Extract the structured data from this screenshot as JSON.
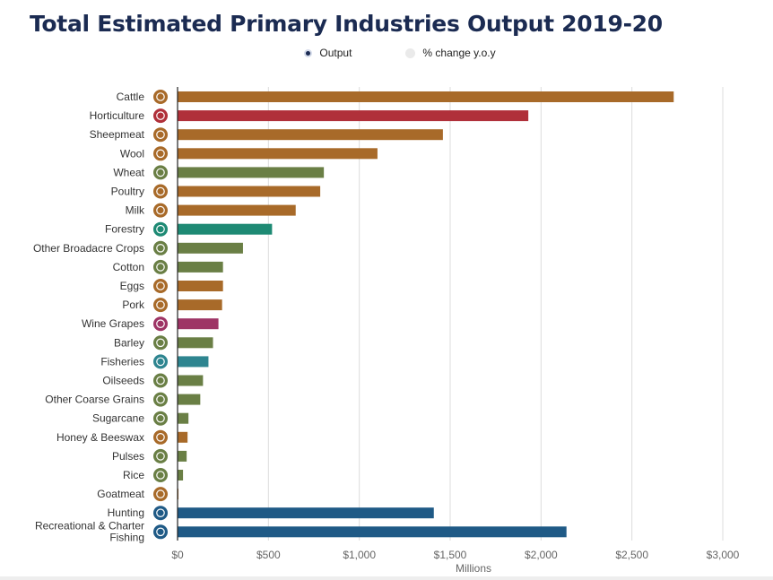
{
  "title": "Total Estimated Primary Industries Output 2019-20",
  "legend": {
    "items": [
      {
        "label": "Output",
        "active": true
      },
      {
        "label": "% change y.o.y",
        "active": false
      }
    ]
  },
  "chart_data": {
    "type": "bar",
    "orientation": "horizontal",
    "title": "Total Estimated Primary Industries Output 2019-20",
    "xlabel": "Millions",
    "ylabel": "",
    "xlim": [
      0,
      3000
    ],
    "x_ticks": [
      0,
      500,
      1000,
      1500,
      2000,
      2500,
      3000
    ],
    "x_tick_labels": [
      "$0",
      "$500",
      "$1,000",
      "$1,500",
      "$2,000",
      "$2,500",
      "$3,000"
    ],
    "grid": "vertical",
    "legend_position": "top-center",
    "categories": [
      "Cattle",
      "Horticulture",
      "Sheepmeat",
      "Wool",
      "Wheat",
      "Poultry",
      "Milk",
      "Forestry",
      "Other Broadacre Crops",
      "Cotton",
      "Eggs",
      "Pork",
      "Wine Grapes",
      "Barley",
      "Fisheries",
      "Oilseeds",
      "Other Coarse Grains",
      "Sugarcane",
      "Honey & Beeswax",
      "Pulses",
      "Rice",
      "Goatmeat",
      "Hunting",
      "Recreational & Charter Fishing"
    ],
    "series": [
      {
        "name": "Output",
        "values": [
          2730,
          1930,
          1460,
          1100,
          805,
          785,
          650,
          520,
          360,
          250,
          250,
          245,
          225,
          195,
          170,
          140,
          125,
          60,
          55,
          50,
          30,
          5,
          1410,
          2140
        ],
        "colors": [
          "#a86a29",
          "#b0303a",
          "#a86a29",
          "#a86a29",
          "#6a7f45",
          "#a86a29",
          "#a86a29",
          "#1e8a74",
          "#6a7f45",
          "#6a7f45",
          "#a86a29",
          "#a86a29",
          "#9e3465",
          "#6a7f45",
          "#2e8590",
          "#6a7f45",
          "#6a7f45",
          "#6a7f45",
          "#a86a29",
          "#6a7f45",
          "#6a7f45",
          "#a86a29",
          "#1f5a86",
          "#1f5a86"
        ]
      }
    ],
    "icons": [
      "cattle-icon",
      "horticulture-icon",
      "sheepmeat-icon",
      "wool-icon",
      "wheat-icon",
      "poultry-icon",
      "milk-icon",
      "forestry-icon",
      "other-broadacre-crops-icon",
      "cotton-icon",
      "eggs-icon",
      "pork-icon",
      "wine-grapes-icon",
      "barley-icon",
      "fisheries-icon",
      "oilseeds-icon",
      "other-coarse-grains-icon",
      "sugarcane-icon",
      "honey-beeswax-icon",
      "pulses-icon",
      "rice-icon",
      "goatmeat-icon",
      "hunting-icon",
      "recreational-charter-fishing-icon"
    ]
  }
}
